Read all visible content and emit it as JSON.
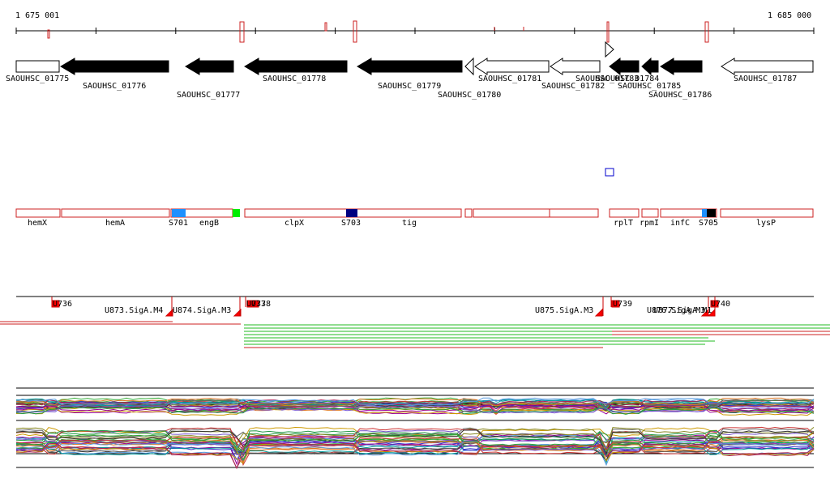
{
  "ruler": {
    "start_label": "1 675 001",
    "end_label": "1 685 000",
    "start_bp": 1675001,
    "end_bp": 1685000
  },
  "colors": {
    "black": "#000000",
    "red_outline": "#cc2222",
    "bright_red": "#ff0000",
    "green": "#00cc00",
    "light_blue": "#1e90ff",
    "navy": "#000080",
    "blue_square": "#0000cc"
  },
  "genes": [
    {
      "name": "SAOUHSC_01775",
      "strand": "+",
      "fill": "white"
    },
    {
      "name": "SAOUHSC_01776",
      "strand": "-",
      "fill": "black"
    },
    {
      "name": "SAOUHSC_01777",
      "strand": "-",
      "fill": "black"
    },
    {
      "name": "SAOUHSC_01778",
      "strand": "-",
      "fill": "black"
    },
    {
      "name": "SAOUHSC_01779",
      "strand": "-",
      "fill": "black"
    },
    {
      "name": "SAOUHSC_01780",
      "strand": "-",
      "fill": "white"
    },
    {
      "name": "SAOUHSC_01781",
      "strand": "-",
      "fill": "white"
    },
    {
      "name": "SAOUHSC_01782",
      "strand": "-",
      "fill": "white"
    },
    {
      "name": "SAOUHSC_01783",
      "strand": "+",
      "fill": "white"
    },
    {
      "name": "SAOUHSC_01784",
      "strand": "-",
      "fill": "black"
    },
    {
      "name": "SAOUHSC_01785",
      "strand": "-",
      "fill": "black"
    },
    {
      "name": "SAOUHSC_01786",
      "strand": "-",
      "fill": "black"
    },
    {
      "name": "SAOUHSC_01787",
      "strand": "-",
      "fill": "white"
    }
  ],
  "features": [
    {
      "label": "hemX"
    },
    {
      "label": "hemA"
    },
    {
      "label": "S701"
    },
    {
      "label": "engB"
    },
    {
      "label": "clpX"
    },
    {
      "label": "S703"
    },
    {
      "label": "tig"
    },
    {
      "label": "rplT"
    },
    {
      "label": "rpmI"
    },
    {
      "label": "infC"
    },
    {
      "label": "S705"
    },
    {
      "label": "lysP"
    }
  ],
  "signals": [
    {
      "label": "U736"
    },
    {
      "label": "U873.SigA.M4"
    },
    {
      "label": "U874.SigA.M3"
    },
    {
      "label": "U737"
    },
    {
      "label": "U738"
    },
    {
      "label": "U875.SigA.M3"
    },
    {
      "label": "U739"
    },
    {
      "label": "U876.SigA.M3"
    },
    {
      "label": "U877.SigA.M1"
    },
    {
      "label": "U740"
    }
  ]
}
